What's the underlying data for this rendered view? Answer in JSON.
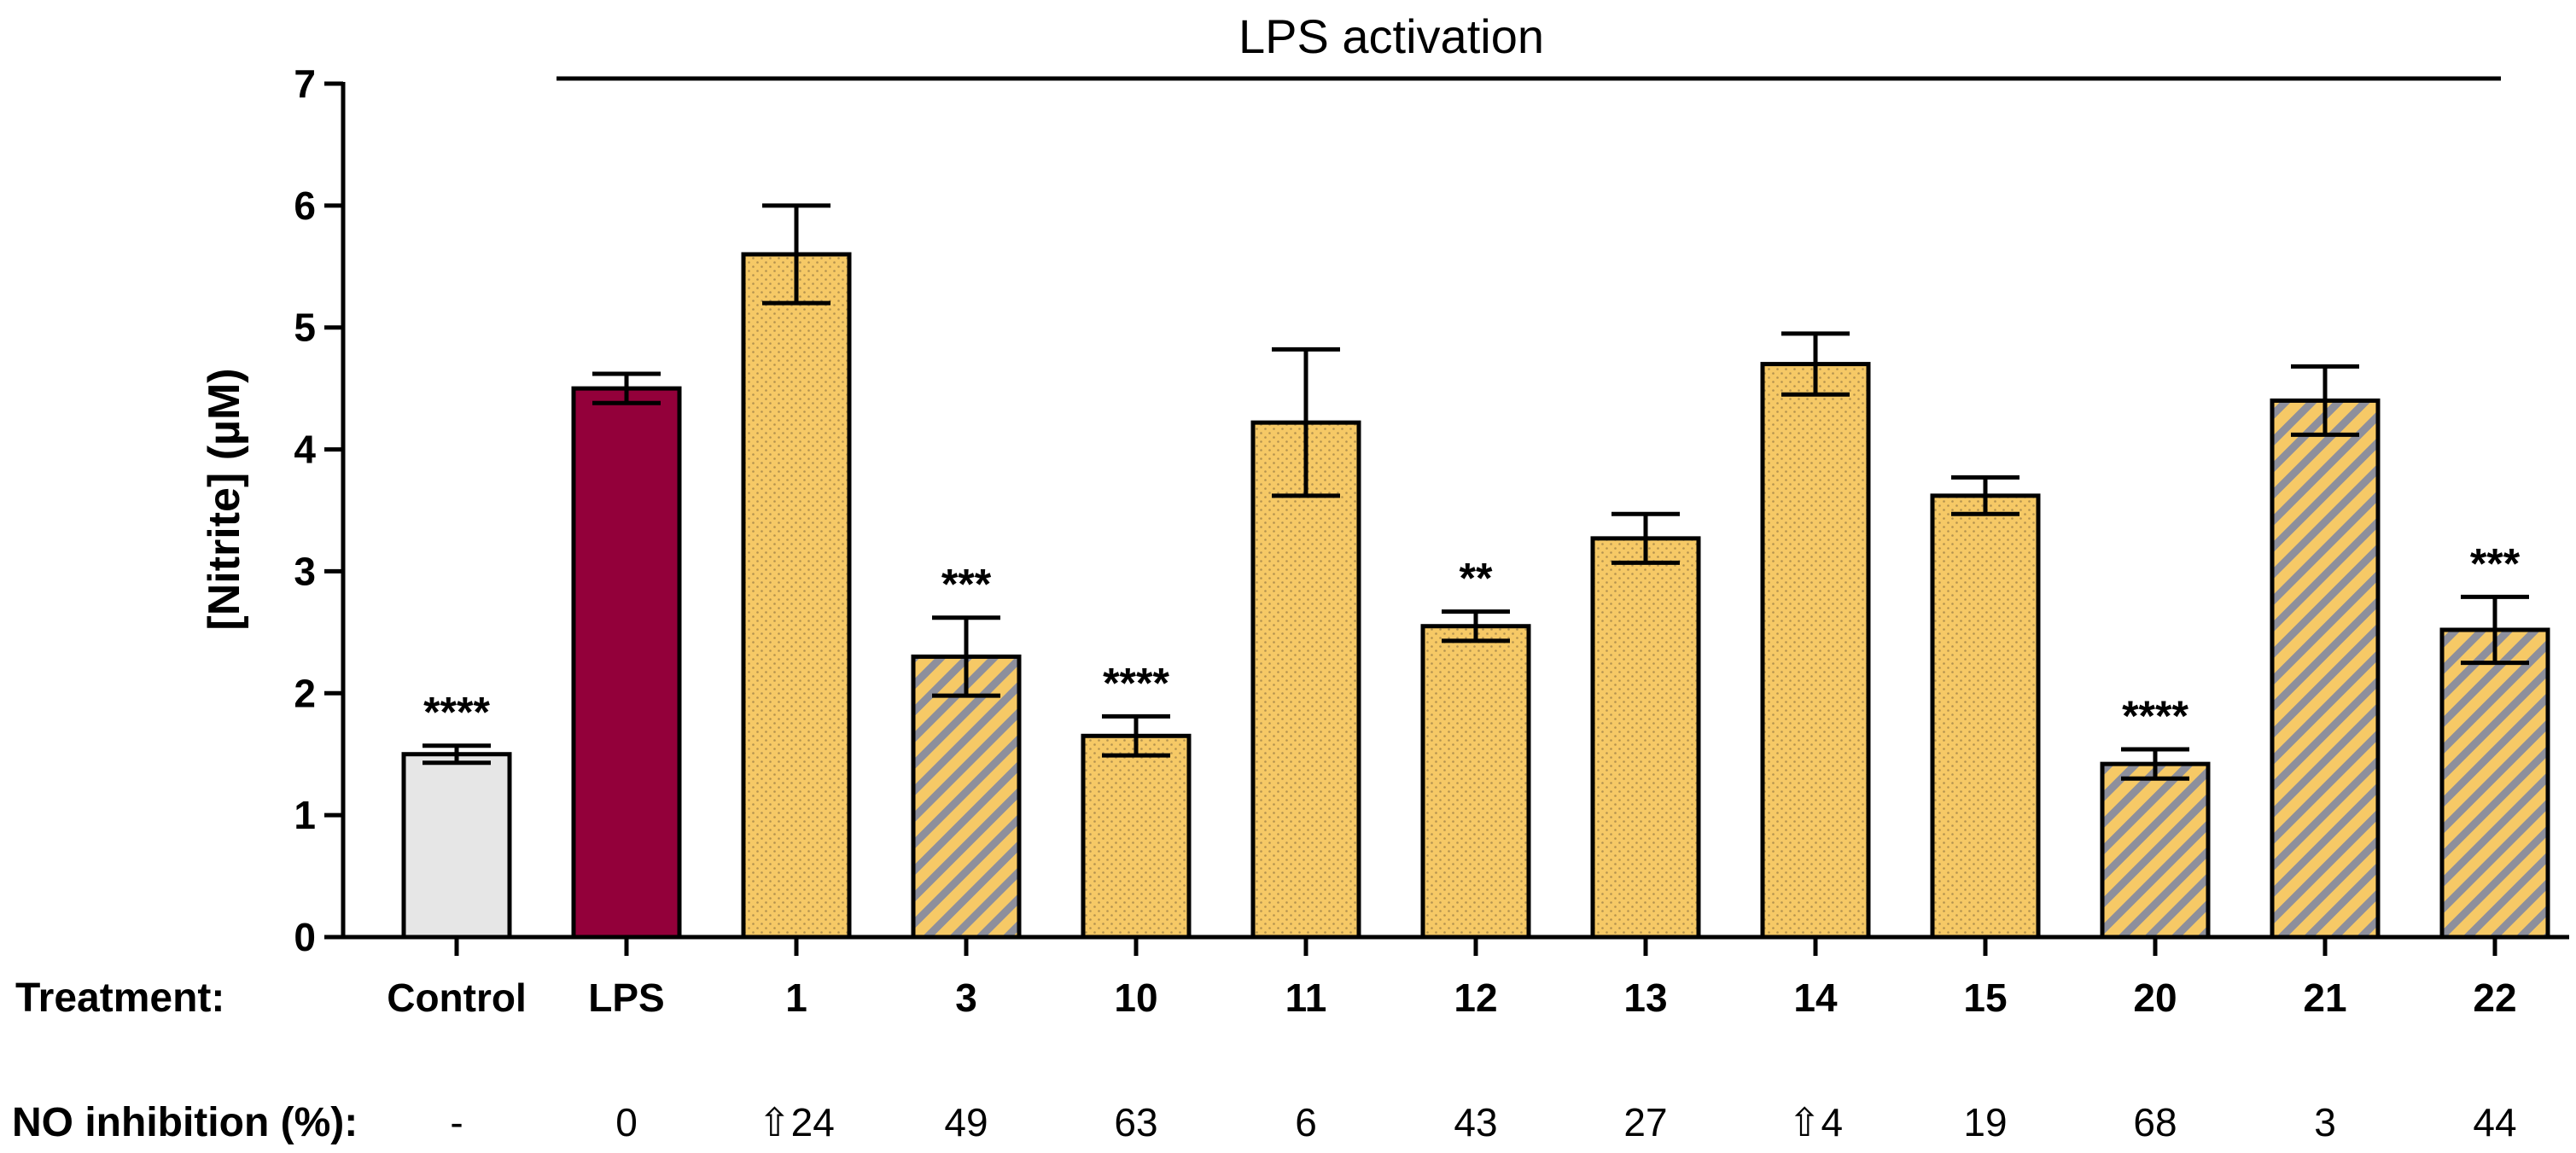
{
  "colors": {
    "control": "#e6e6e6",
    "lps": "#93003a",
    "compound": "#f6c966",
    "dots": "#b3924f",
    "stripe": "#8d8f9c",
    "outline": "#000000"
  },
  "chart_data": {
    "type": "bar",
    "title": "",
    "ylabel": "[Nitrite] (µM)",
    "xlabel": "Treatment:",
    "ylim": [
      0,
      7
    ],
    "yticks": [
      "0",
      "1",
      "2",
      "3",
      "4",
      "5",
      "6",
      "7"
    ],
    "bracket_label": "LPS activation",
    "row_label": "Treatment:",
    "inhibition_label": "NO inhibition (%):",
    "categories": [
      "Control",
      "LPS",
      "1",
      "3",
      "10",
      "11",
      "12",
      "13",
      "14",
      "15",
      "20",
      "21",
      "22"
    ],
    "values": [
      1.5,
      4.5,
      5.6,
      2.3,
      1.65,
      4.22,
      2.55,
      3.27,
      4.7,
      3.62,
      1.42,
      4.4,
      2.52
    ],
    "errors": [
      0.07,
      0.12,
      0.4,
      0.32,
      0.16,
      0.6,
      0.12,
      0.2,
      0.25,
      0.15,
      0.12,
      0.28,
      0.27
    ],
    "significance": [
      "****",
      "",
      "",
      "***",
      "****",
      "",
      "**",
      "",
      "",
      "",
      "****",
      "",
      "***"
    ],
    "patterns": [
      "control",
      "lps",
      "dots",
      "stripes",
      "dots",
      "dots",
      "dots",
      "dots",
      "dots",
      "dots",
      "stripes",
      "stripes",
      "stripes"
    ],
    "no_inhibition": [
      "-",
      "0",
      "⇧24",
      "49",
      "63",
      "6",
      "43",
      "27",
      "⇧4",
      "19",
      "68",
      "3",
      "44"
    ]
  }
}
